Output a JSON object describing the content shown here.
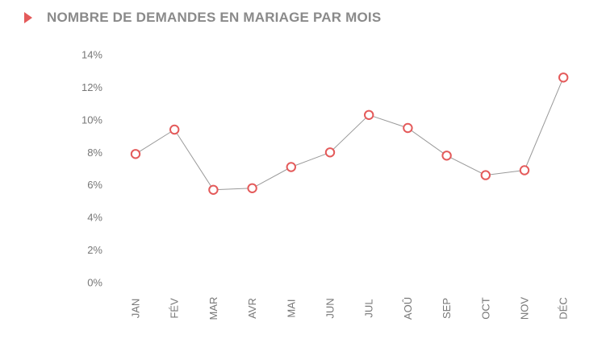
{
  "chart_data": {
    "type": "line",
    "title": "NOMBRE DE DEMANDES EN MARIAGE PAR MOIS",
    "xlabel": "",
    "ylabel": "",
    "categories": [
      "JAN",
      "FÉV",
      "MAR",
      "AVR",
      "MAI",
      "JUN",
      "JUL",
      "AOÛ",
      "SEP",
      "OCT",
      "NOV",
      "DÉC"
    ],
    "series": [
      {
        "values": [
          7.9,
          9.4,
          5.7,
          5.8,
          7.1,
          8.0,
          10.3,
          9.5,
          7.8,
          6.6,
          6.9,
          12.6
        ]
      }
    ],
    "ylim": [
      0,
      14
    ],
    "yticks": [
      "0%",
      "2%",
      "4%",
      "6%",
      "8%",
      "10%",
      "12%",
      "14%"
    ],
    "ytick_values": [
      0,
      2,
      4,
      6,
      8,
      10,
      12,
      14
    ],
    "grid": false,
    "line_color": "#999999",
    "marker_color": "#e45a5a"
  }
}
